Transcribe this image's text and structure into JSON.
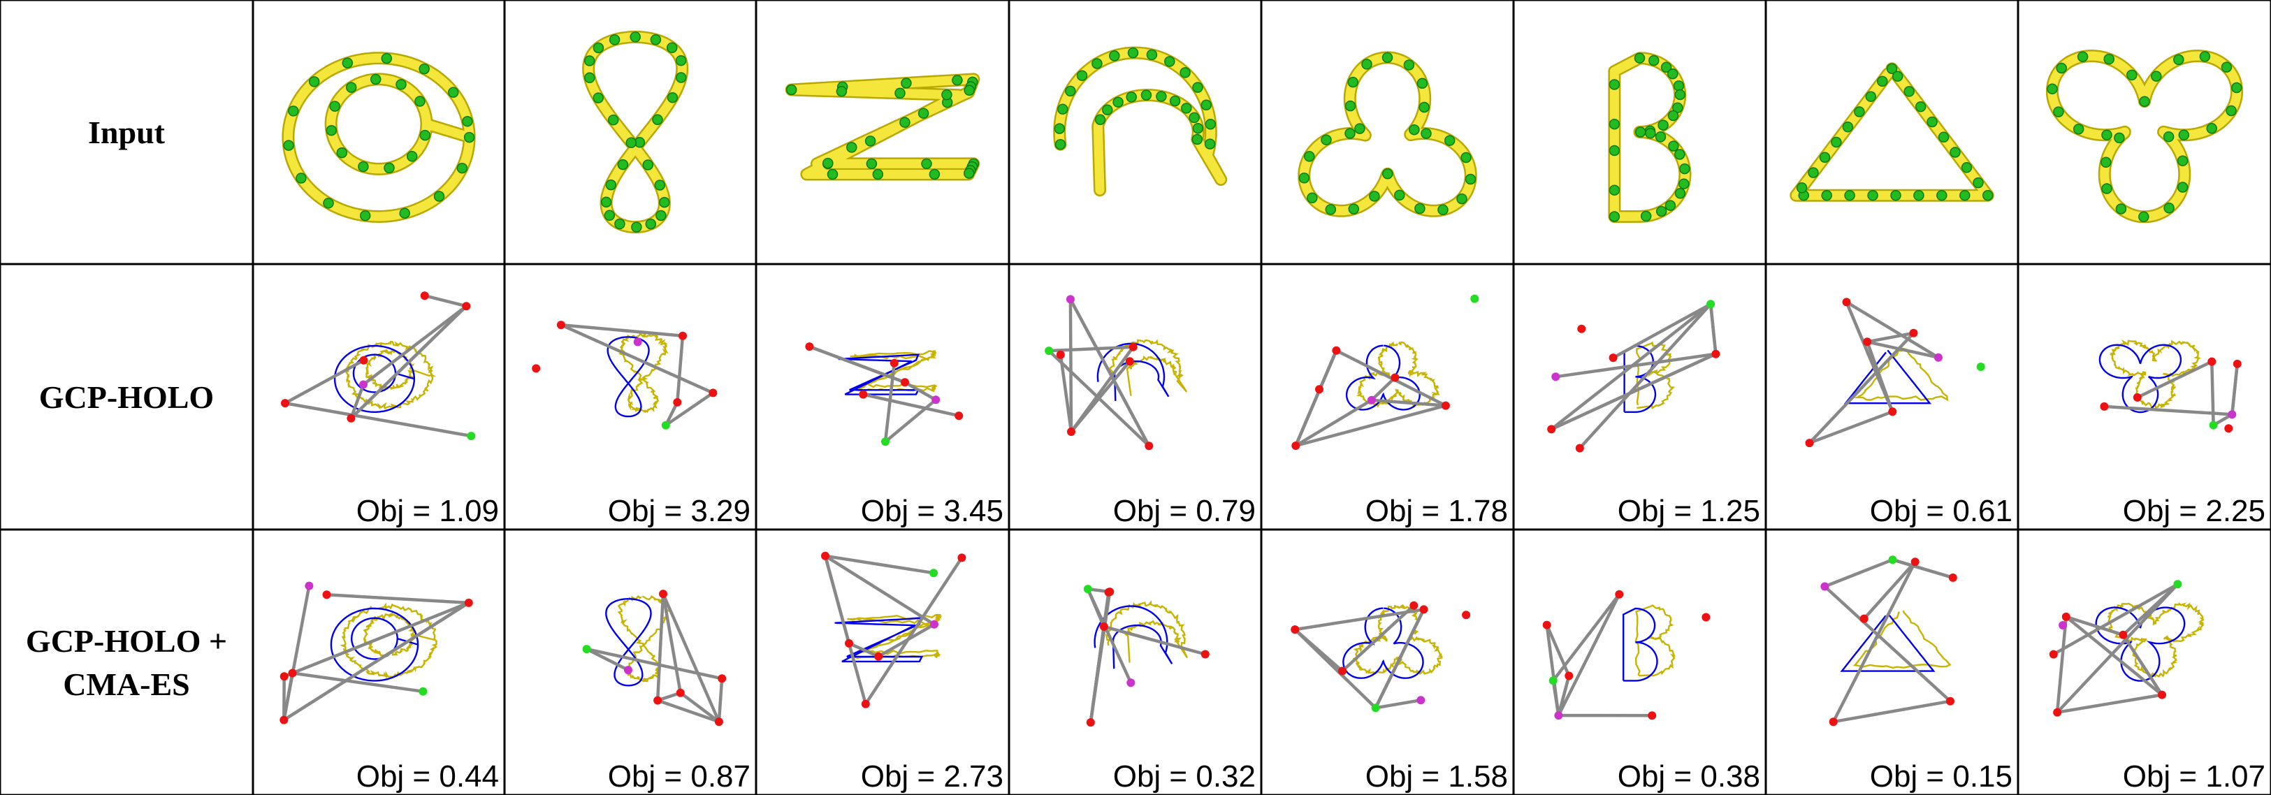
{
  "rows": [
    {
      "label_lines": [
        "Input"
      ]
    },
    {
      "label_lines": [
        "GCP-HOLO"
      ]
    },
    {
      "label_lines": [
        "GCP-HOLO +",
        "CMA-ES"
      ]
    }
  ],
  "input_shapes": [
    "double loop",
    "figure eight",
    "Z shape",
    "hook",
    "trefoil",
    "B shape",
    "triangle",
    "three-lobe knot"
  ],
  "gcp_holo_objectives": [
    "Obj = 1.09",
    "Obj = 3.29",
    "Obj = 3.45",
    "Obj = 0.79",
    "Obj = 1.78",
    "Obj = 1.25",
    "Obj = 0.61",
    "Obj = 2.25"
  ],
  "gcp_holo_cmaes_objectives": [
    "Obj = 0.44",
    "Obj = 0.87",
    "Obj = 2.73",
    "Obj = 0.32",
    "Obj = 1.58",
    "Obj = 0.38",
    "Obj = 0.15",
    "Obj = 1.07"
  ],
  "colors": {
    "grid_line": "#000000",
    "target_curve": "#c8b400",
    "generated_curve": "#0000ee",
    "linkage_bar": "#888888",
    "joint_red": "#ee1111",
    "joint_green": "#22dd22",
    "joint_magenta": "#cc33cc",
    "tube_fill": "#f5e63c",
    "tube_edge": "#b9a800",
    "input_node": "#22bb22"
  }
}
